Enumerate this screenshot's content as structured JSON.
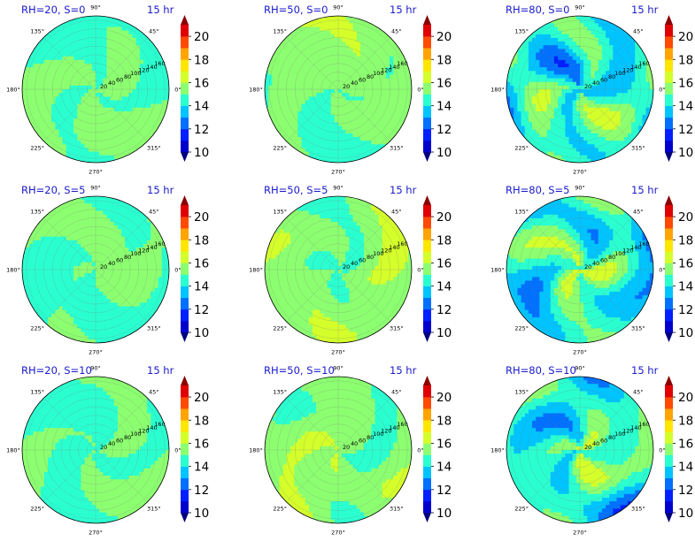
{
  "chart_data": {
    "type": "heatmap",
    "projection": "polar",
    "time_label": "15 hr",
    "angle_ticks": [
      "90°",
      "45°",
      "0°",
      "315°",
      "270°",
      "225°",
      "180°",
      "135°"
    ],
    "radial_ticks": [
      "20",
      "40",
      "60",
      "80",
      "100",
      "120",
      "140",
      "160"
    ],
    "colorbar": {
      "ticks": [
        "10",
        "12",
        "14",
        "16",
        "18",
        "20"
      ],
      "range": [
        10,
        21
      ],
      "extend": "both",
      "colors": [
        "#00007f",
        "#0000cd",
        "#0020ff",
        "#0070ff",
        "#00c4ff",
        "#2affd0",
        "#8cff70",
        "#d4ff2a",
        "#ffe600",
        "#ffa400",
        "#ff4a00",
        "#e00000",
        "#8b0000"
      ]
    },
    "panels": [
      {
        "title": "RH=20, S=0",
        "mean": 15.0,
        "spread": 0.65
      },
      {
        "title": "RH=50, S=0",
        "mean": 15.4,
        "spread": 0.75
      },
      {
        "title": "RH=80, S=0",
        "mean": 14.2,
        "spread": 1.9
      },
      {
        "title": "RH=20, S=5",
        "mean": 15.0,
        "spread": 0.65
      },
      {
        "title": "RH=50, S=5",
        "mean": 15.5,
        "spread": 0.75
      },
      {
        "title": "RH=80, S=5",
        "mean": 14.2,
        "spread": 1.9
      },
      {
        "title": "RH=20, S=10",
        "mean": 15.1,
        "spread": 0.7
      },
      {
        "title": "RH=50, S=10",
        "mean": 15.5,
        "spread": 0.8
      },
      {
        "title": "RH=80, S=10",
        "mean": 14.3,
        "spread": 2.0
      }
    ]
  }
}
